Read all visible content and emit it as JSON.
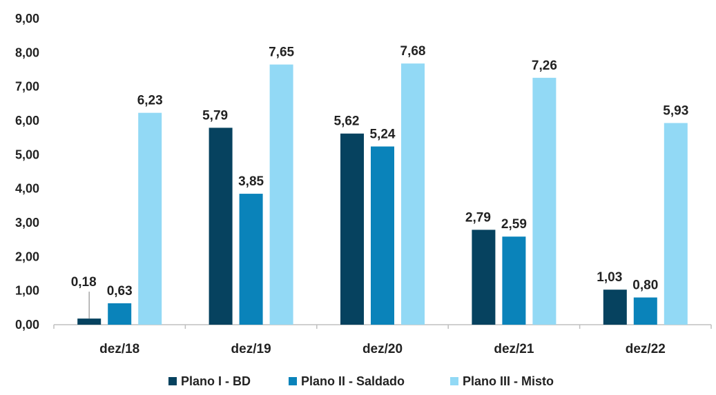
{
  "chart_data": {
    "type": "bar",
    "categories": [
      "dez/18",
      "dez/19",
      "dez/20",
      "dez/21",
      "dez/22"
    ],
    "series": [
      {
        "name": "Plano I - BD",
        "values": [
          0.18,
          5.79,
          5.62,
          2.79,
          1.03
        ],
        "labels": [
          "0,18",
          "5,79",
          "5,62",
          "2,79",
          "1,03"
        ],
        "color": "#06425F"
      },
      {
        "name": "Plano II - Saldado",
        "values": [
          0.63,
          3.85,
          5.24,
          2.59,
          0.8
        ],
        "labels": [
          "0,63",
          "3,85",
          "5,24",
          "2,59",
          "0,80"
        ],
        "color": "#0A83BA"
      },
      {
        "name": "Plano III - Misto",
        "values": [
          6.23,
          7.65,
          7.68,
          7.26,
          5.93
        ],
        "labels": [
          "6,23",
          "7,65",
          "7,68",
          "7,26",
          "5,93"
        ],
        "color": "#92D9F5"
      }
    ],
    "yticks": [
      "0,00",
      "1,00",
      "2,00",
      "3,00",
      "4,00",
      "5,00",
      "6,00",
      "7,00",
      "8,00",
      "9,00"
    ],
    "ylim": [
      0,
      9
    ],
    "grid": false,
    "legend_position": "bottom",
    "title": "",
    "xlabel": "",
    "ylabel": ""
  }
}
